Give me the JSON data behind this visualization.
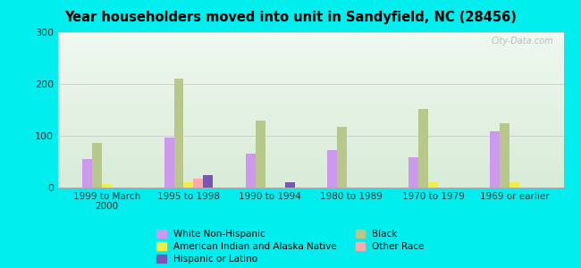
{
  "title": "Year householders moved into unit in Sandyfield, NC (28456)",
  "categories": [
    "1999 to March\n2000",
    "1995 to 1998",
    "1990 to 1994",
    "1980 to 1989",
    "1970 to 1979",
    "1969 or earlier"
  ],
  "series": {
    "White Non-Hispanic": [
      55,
      97,
      65,
      72,
      58,
      108
    ],
    "Black": [
      87,
      210,
      130,
      118,
      152,
      125
    ],
    "American Indian and Alaska Native": [
      7,
      10,
      0,
      0,
      10,
      10
    ],
    "Other Race": [
      0,
      18,
      0,
      0,
      0,
      0
    ],
    "Hispanic or Latino": [
      0,
      25,
      10,
      0,
      0,
      0
    ]
  },
  "colors": {
    "White Non-Hispanic": "#cc99ee",
    "Black": "#b8c88a",
    "American Indian and Alaska Native": "#eeee44",
    "Other Race": "#ffaaaa",
    "Hispanic or Latino": "#7755bb"
  },
  "bar_order": [
    "White Non-Hispanic",
    "Black",
    "American Indian and Alaska Native",
    "Other Race",
    "Hispanic or Latino"
  ],
  "ylim": [
    0,
    300
  ],
  "yticks": [
    0,
    100,
    200,
    300
  ],
  "background_color": "#00eeee",
  "grad_top": "#f0f8f0",
  "grad_bottom": "#d8ecd8",
  "watermark": "City-Data.com",
  "legend_order": [
    "White Non-Hispanic",
    "American Indian and Alaska Native",
    "Hispanic or Latino",
    "Black",
    "Other Race"
  ]
}
